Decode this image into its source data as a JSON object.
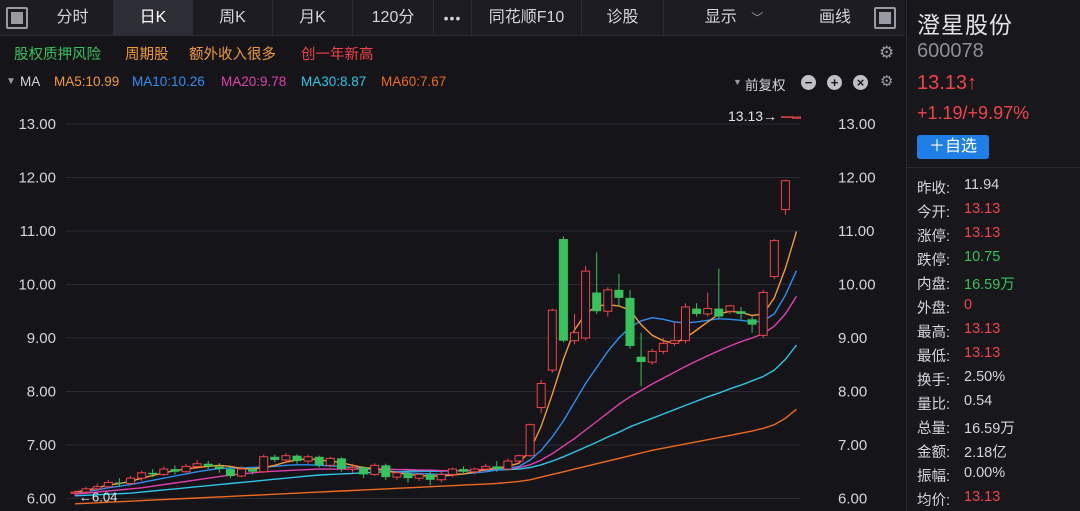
{
  "colors": {
    "up": "#f0434a",
    "down": "#37c25b",
    "ma5": "#f39a32",
    "ma10": "#2e8ff2",
    "ma20": "#e040b0",
    "ma30": "#2cc7e6",
    "ma60": "#f06a1c",
    "bg": "#141419",
    "grid": "#2a2a31",
    "accent": "#1f7fe6"
  },
  "toolbar": {
    "tabs": [
      "分时",
      "日K",
      "周K",
      "月K",
      "120分"
    ],
    "active_tab": "日K",
    "more": "•••",
    "f10": "同花顺F10",
    "diagnose": "诊股",
    "display": "显示",
    "draw": "画线",
    "icons": [
      "window-icon",
      "window-icon"
    ]
  },
  "tags": [
    {
      "text": "股权质押风险",
      "color": "#37c25b"
    },
    {
      "text": "周期股",
      "color": "#f39a32"
    },
    {
      "text": "额外收入很多",
      "color": "#f39a32"
    },
    {
      "text": "创一年新高",
      "color": "#f0434a"
    }
  ],
  "ma_bar": {
    "label": "MA",
    "items": [
      {
        "text": "MA5:10.99",
        "color": "#f39a32"
      },
      {
        "text": "MA10:10.26",
        "color": "#2e8ff2"
      },
      {
        "text": "MA20:9.78",
        "color": "#e040b0"
      },
      {
        "text": "MA30:8.87",
        "color": "#2cc7e6"
      },
      {
        "text": "MA60:7.67",
        "color": "#f06a1c"
      }
    ],
    "adjust": "前复权",
    "controls": [
      "−",
      "+",
      "×"
    ]
  },
  "chart_data": {
    "type": "candlestick",
    "y_ticks": [
      "13.00",
      "12.00",
      "11.00",
      "10.00",
      "9.00",
      "8.00",
      "7.00",
      "6.00"
    ],
    "ylim": [
      5.95,
      13.55
    ],
    "last_price_label": "13.13→",
    "low_label": "←6.04",
    "candles": [
      [
        6.1,
        6.12,
        6.15,
        6.04
      ],
      [
        6.12,
        6.18,
        6.22,
        6.1
      ],
      [
        6.18,
        6.22,
        6.28,
        6.15
      ],
      [
        6.22,
        6.3,
        6.35,
        6.2
      ],
      [
        6.3,
        6.28,
        6.38,
        6.22
      ],
      [
        6.28,
        6.38,
        6.42,
        6.25
      ],
      [
        6.38,
        6.48,
        6.52,
        6.33
      ],
      [
        6.48,
        6.45,
        6.55,
        6.4
      ],
      [
        6.45,
        6.55,
        6.6,
        6.42
      ],
      [
        6.55,
        6.5,
        6.62,
        6.45
      ],
      [
        6.5,
        6.6,
        6.65,
        6.48
      ],
      [
        6.6,
        6.65,
        6.72,
        6.55
      ],
      [
        6.65,
        6.6,
        6.7,
        6.55
      ],
      [
        6.6,
        6.55,
        6.66,
        6.48
      ],
      [
        6.55,
        6.42,
        6.58,
        6.38
      ],
      [
        6.42,
        6.55,
        6.6,
        6.4
      ],
      [
        6.55,
        6.5,
        6.58,
        6.45
      ],
      [
        6.5,
        6.78,
        6.82,
        6.48
      ],
      [
        6.78,
        6.72,
        6.82,
        6.68
      ],
      [
        6.72,
        6.8,
        6.85,
        6.68
      ],
      [
        6.8,
        6.7,
        6.83,
        6.65
      ],
      [
        6.7,
        6.78,
        6.82,
        6.65
      ],
      [
        6.78,
        6.62,
        6.8,
        6.58
      ],
      [
        6.62,
        6.75,
        6.78,
        6.58
      ],
      [
        6.75,
        6.55,
        6.77,
        6.5
      ],
      [
        6.55,
        6.58,
        6.65,
        6.48
      ],
      [
        6.58,
        6.45,
        6.6,
        6.38
      ],
      [
        6.45,
        6.62,
        6.66,
        6.42
      ],
      [
        6.62,
        6.4,
        6.65,
        6.35
      ],
      [
        6.4,
        6.48,
        6.52,
        6.35
      ],
      [
        6.48,
        6.38,
        6.52,
        6.3
      ],
      [
        6.38,
        6.45,
        6.48,
        6.33
      ],
      [
        6.45,
        6.35,
        6.5,
        6.25
      ],
      [
        6.35,
        6.45,
        6.5,
        6.3
      ],
      [
        6.45,
        6.55,
        6.58,
        6.4
      ],
      [
        6.55,
        6.5,
        6.6,
        6.45
      ],
      [
        6.5,
        6.55,
        6.58,
        6.45
      ],
      [
        6.55,
        6.6,
        6.65,
        6.5
      ],
      [
        6.6,
        6.55,
        6.7,
        6.5
      ],
      [
        6.55,
        6.7,
        6.75,
        6.52
      ],
      [
        6.7,
        6.8,
        6.82,
        6.65
      ],
      [
        6.8,
        7.38,
        7.4,
        6.78
      ],
      [
        7.7,
        8.15,
        8.22,
        7.6
      ],
      [
        8.4,
        9.52,
        9.55,
        8.35
      ],
      [
        10.85,
        8.95,
        10.9,
        8.92
      ],
      [
        8.95,
        9.1,
        9.45,
        8.88
      ],
      [
        9.0,
        10.25,
        10.35,
        8.95
      ],
      [
        9.85,
        9.5,
        10.6,
        9.45
      ],
      [
        9.5,
        9.9,
        9.95,
        9.4
      ],
      [
        9.9,
        9.75,
        10.2,
        9.6
      ],
      [
        9.75,
        8.85,
        9.9,
        8.8
      ],
      [
        8.65,
        8.55,
        9.1,
        8.1
      ],
      [
        8.55,
        8.75,
        8.8,
        8.5
      ],
      [
        8.75,
        8.9,
        9.0,
        8.7
      ],
      [
        8.9,
        8.95,
        9.3,
        8.85
      ],
      [
        8.95,
        9.58,
        9.65,
        8.9
      ],
      [
        9.55,
        9.45,
        9.65,
        9.4
      ],
      [
        9.45,
        9.55,
        9.85,
        9.4
      ],
      [
        9.55,
        9.4,
        10.3,
        9.35
      ],
      [
        9.5,
        9.6,
        9.62,
        9.45
      ],
      [
        9.5,
        9.45,
        9.58,
        9.35
      ],
      [
        9.35,
        9.25,
        9.4,
        9.1
      ],
      [
        9.05,
        9.85,
        9.9,
        9.0
      ],
      [
        10.15,
        10.82,
        10.85,
        10.1
      ],
      [
        11.4,
        11.94,
        11.96,
        11.3
      ],
      [
        13.13,
        13.13,
        13.13,
        13.13
      ]
    ],
    "ma5": [
      6.12,
      6.15,
      6.2,
      6.25,
      6.28,
      6.32,
      6.38,
      6.43,
      6.48,
      6.52,
      6.55,
      6.58,
      6.6,
      6.62,
      6.6,
      6.56,
      6.55,
      6.58,
      6.62,
      6.68,
      6.72,
      6.75,
      6.72,
      6.7,
      6.67,
      6.62,
      6.58,
      6.56,
      6.52,
      6.48,
      6.45,
      6.43,
      6.42,
      6.42,
      6.44,
      6.46,
      6.5,
      6.54,
      6.57,
      6.6,
      6.66,
      6.9,
      7.35,
      7.95,
      8.6,
      9.15,
      9.45,
      9.6,
      9.62,
      9.6,
      9.52,
      9.25,
      9.05,
      8.95,
      8.9,
      9.0,
      9.15,
      9.3,
      9.45,
      9.5,
      9.48,
      9.42,
      9.45,
      9.75,
      10.3,
      10.99
    ],
    "ma10": [
      6.1,
      6.13,
      6.16,
      6.2,
      6.23,
      6.26,
      6.3,
      6.34,
      6.38,
      6.42,
      6.46,
      6.5,
      6.53,
      6.56,
      6.57,
      6.57,
      6.58,
      6.59,
      6.6,
      6.62,
      6.63,
      6.63,
      6.62,
      6.61,
      6.6,
      6.58,
      6.56,
      6.54,
      6.52,
      6.5,
      6.48,
      6.47,
      6.46,
      6.45,
      6.45,
      6.46,
      6.48,
      6.5,
      6.53,
      6.56,
      6.6,
      6.72,
      6.9,
      7.15,
      7.45,
      7.8,
      8.15,
      8.45,
      8.75,
      9.0,
      9.2,
      9.32,
      9.38,
      9.35,
      9.3,
      9.28,
      9.3,
      9.33,
      9.36,
      9.35,
      9.33,
      9.3,
      9.32,
      9.45,
      9.8,
      10.26
    ],
    "ma20": [
      6.08,
      6.1,
      6.12,
      6.14,
      6.16,
      6.18,
      6.2,
      6.23,
      6.26,
      6.29,
      6.32,
      6.35,
      6.38,
      6.41,
      6.44,
      6.46,
      6.48,
      6.5,
      6.51,
      6.52,
      6.53,
      6.54,
      6.55,
      6.55,
      6.55,
      6.55,
      6.55,
      6.55,
      6.55,
      6.54,
      6.54,
      6.53,
      6.53,
      6.52,
      6.52,
      6.52,
      6.53,
      6.54,
      6.55,
      6.56,
      6.58,
      6.63,
      6.72,
      6.84,
      6.98,
      7.12,
      7.28,
      7.44,
      7.6,
      7.76,
      7.9,
      8.02,
      8.14,
      8.25,
      8.36,
      8.47,
      8.57,
      8.67,
      8.76,
      8.85,
      8.93,
      9.0,
      9.08,
      9.22,
      9.45,
      9.78
    ],
    "ma30": [
      6.05,
      6.06,
      6.07,
      6.08,
      6.09,
      6.1,
      6.12,
      6.14,
      6.16,
      6.18,
      6.2,
      6.22,
      6.24,
      6.26,
      6.28,
      6.3,
      6.32,
      6.34,
      6.36,
      6.38,
      6.4,
      6.42,
      6.44,
      6.45,
      6.46,
      6.47,
      6.48,
      6.49,
      6.5,
      6.5,
      6.51,
      6.51,
      6.51,
      6.51,
      6.52,
      6.52,
      6.52,
      6.53,
      6.53,
      6.54,
      6.55,
      6.58,
      6.63,
      6.7,
      6.78,
      6.87,
      6.96,
      7.05,
      7.15,
      7.24,
      7.34,
      7.42,
      7.5,
      7.58,
      7.66,
      7.74,
      7.82,
      7.9,
      7.97,
      8.05,
      8.12,
      8.2,
      8.28,
      8.4,
      8.6,
      8.87
    ],
    "ma60": [
      5.9,
      5.91,
      5.92,
      5.93,
      5.94,
      5.95,
      5.96,
      5.97,
      5.98,
      5.99,
      6.0,
      6.01,
      6.02,
      6.03,
      6.04,
      6.05,
      6.06,
      6.07,
      6.08,
      6.09,
      6.1,
      6.11,
      6.12,
      6.13,
      6.14,
      6.15,
      6.16,
      6.17,
      6.18,
      6.19,
      6.2,
      6.21,
      6.22,
      6.23,
      6.24,
      6.25,
      6.26,
      6.27,
      6.28,
      6.3,
      6.32,
      6.35,
      6.4,
      6.45,
      6.5,
      6.55,
      6.6,
      6.65,
      6.7,
      6.75,
      6.8,
      6.85,
      6.9,
      6.94,
      6.98,
      7.02,
      7.06,
      7.1,
      7.14,
      7.18,
      7.22,
      7.26,
      7.31,
      7.38,
      7.5,
      7.67
    ]
  },
  "stock": {
    "name": "澄星股份",
    "code": "600078",
    "price": "13.13↑",
    "change": "+1.19/+9.97%",
    "add_label": "＋自选"
  },
  "stats": [
    {
      "k": "昨收:",
      "v": "11.94",
      "c": "white"
    },
    {
      "k": "今开:",
      "v": "13.13",
      "c": "red"
    },
    {
      "k": "涨停:",
      "v": "13.13",
      "c": "red"
    },
    {
      "k": "跌停:",
      "v": "10.75",
      "c": "green"
    },
    {
      "k": "内盘:",
      "v": "16.59万",
      "c": "green"
    },
    {
      "k": "外盘:",
      "v": "0",
      "c": "red"
    },
    {
      "k": "最高:",
      "v": "13.13",
      "c": "red"
    },
    {
      "k": "最低:",
      "v": "13.13",
      "c": "red"
    },
    {
      "k": "换手:",
      "v": "2.50%",
      "c": "white"
    },
    {
      "k": "量比:",
      "v": "0.54",
      "c": "white"
    },
    {
      "k": "总量:",
      "v": "16.59万",
      "c": "white"
    },
    {
      "k": "金额:",
      "v": "2.18亿",
      "c": "white"
    },
    {
      "k": "振幅:",
      "v": "0.00%",
      "c": "white"
    },
    {
      "k": "均价:",
      "v": "13.13",
      "c": "red"
    }
  ]
}
